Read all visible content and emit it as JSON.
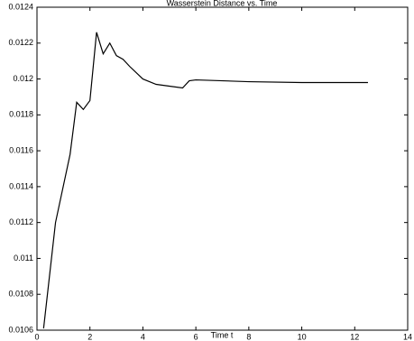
{
  "chart_data": {
    "type": "line",
    "title": "Wasserstein Distance vs. Time",
    "x_label": "Time t",
    "x": [
      0.25,
      0.7,
      1.25,
      1.5,
      1.75,
      2.0,
      2.25,
      2.5,
      2.75,
      3.0,
      3.25,
      3.5,
      4.0,
      4.5,
      5.0,
      5.5,
      5.75,
      6.0,
      8.0,
      10.0,
      12.5
    ],
    "series": [
      {
        "name": "Wasserstein distance",
        "color": "#000000",
        "values": [
          0.01061,
          0.0112,
          0.01158,
          0.01187,
          0.01183,
          0.01188,
          0.01226,
          0.01214,
          0.0122,
          0.01213,
          0.01211,
          0.01207,
          0.012,
          0.01197,
          0.01196,
          0.01195,
          0.01199,
          0.011995,
          0.011985,
          0.01198,
          0.01198
        ]
      }
    ],
    "xlim": [
      0,
      14
    ],
    "xticks": [
      0,
      2,
      4,
      6,
      8,
      10,
      12,
      14
    ],
    "ylim": [
      0.0106,
      0.0124
    ],
    "yticks": [
      0.0106,
      0.0108,
      0.011,
      0.0112,
      0.0114,
      0.0116,
      0.0118,
      0.012,
      0.0122,
      0.0124
    ],
    "grid": false
  }
}
